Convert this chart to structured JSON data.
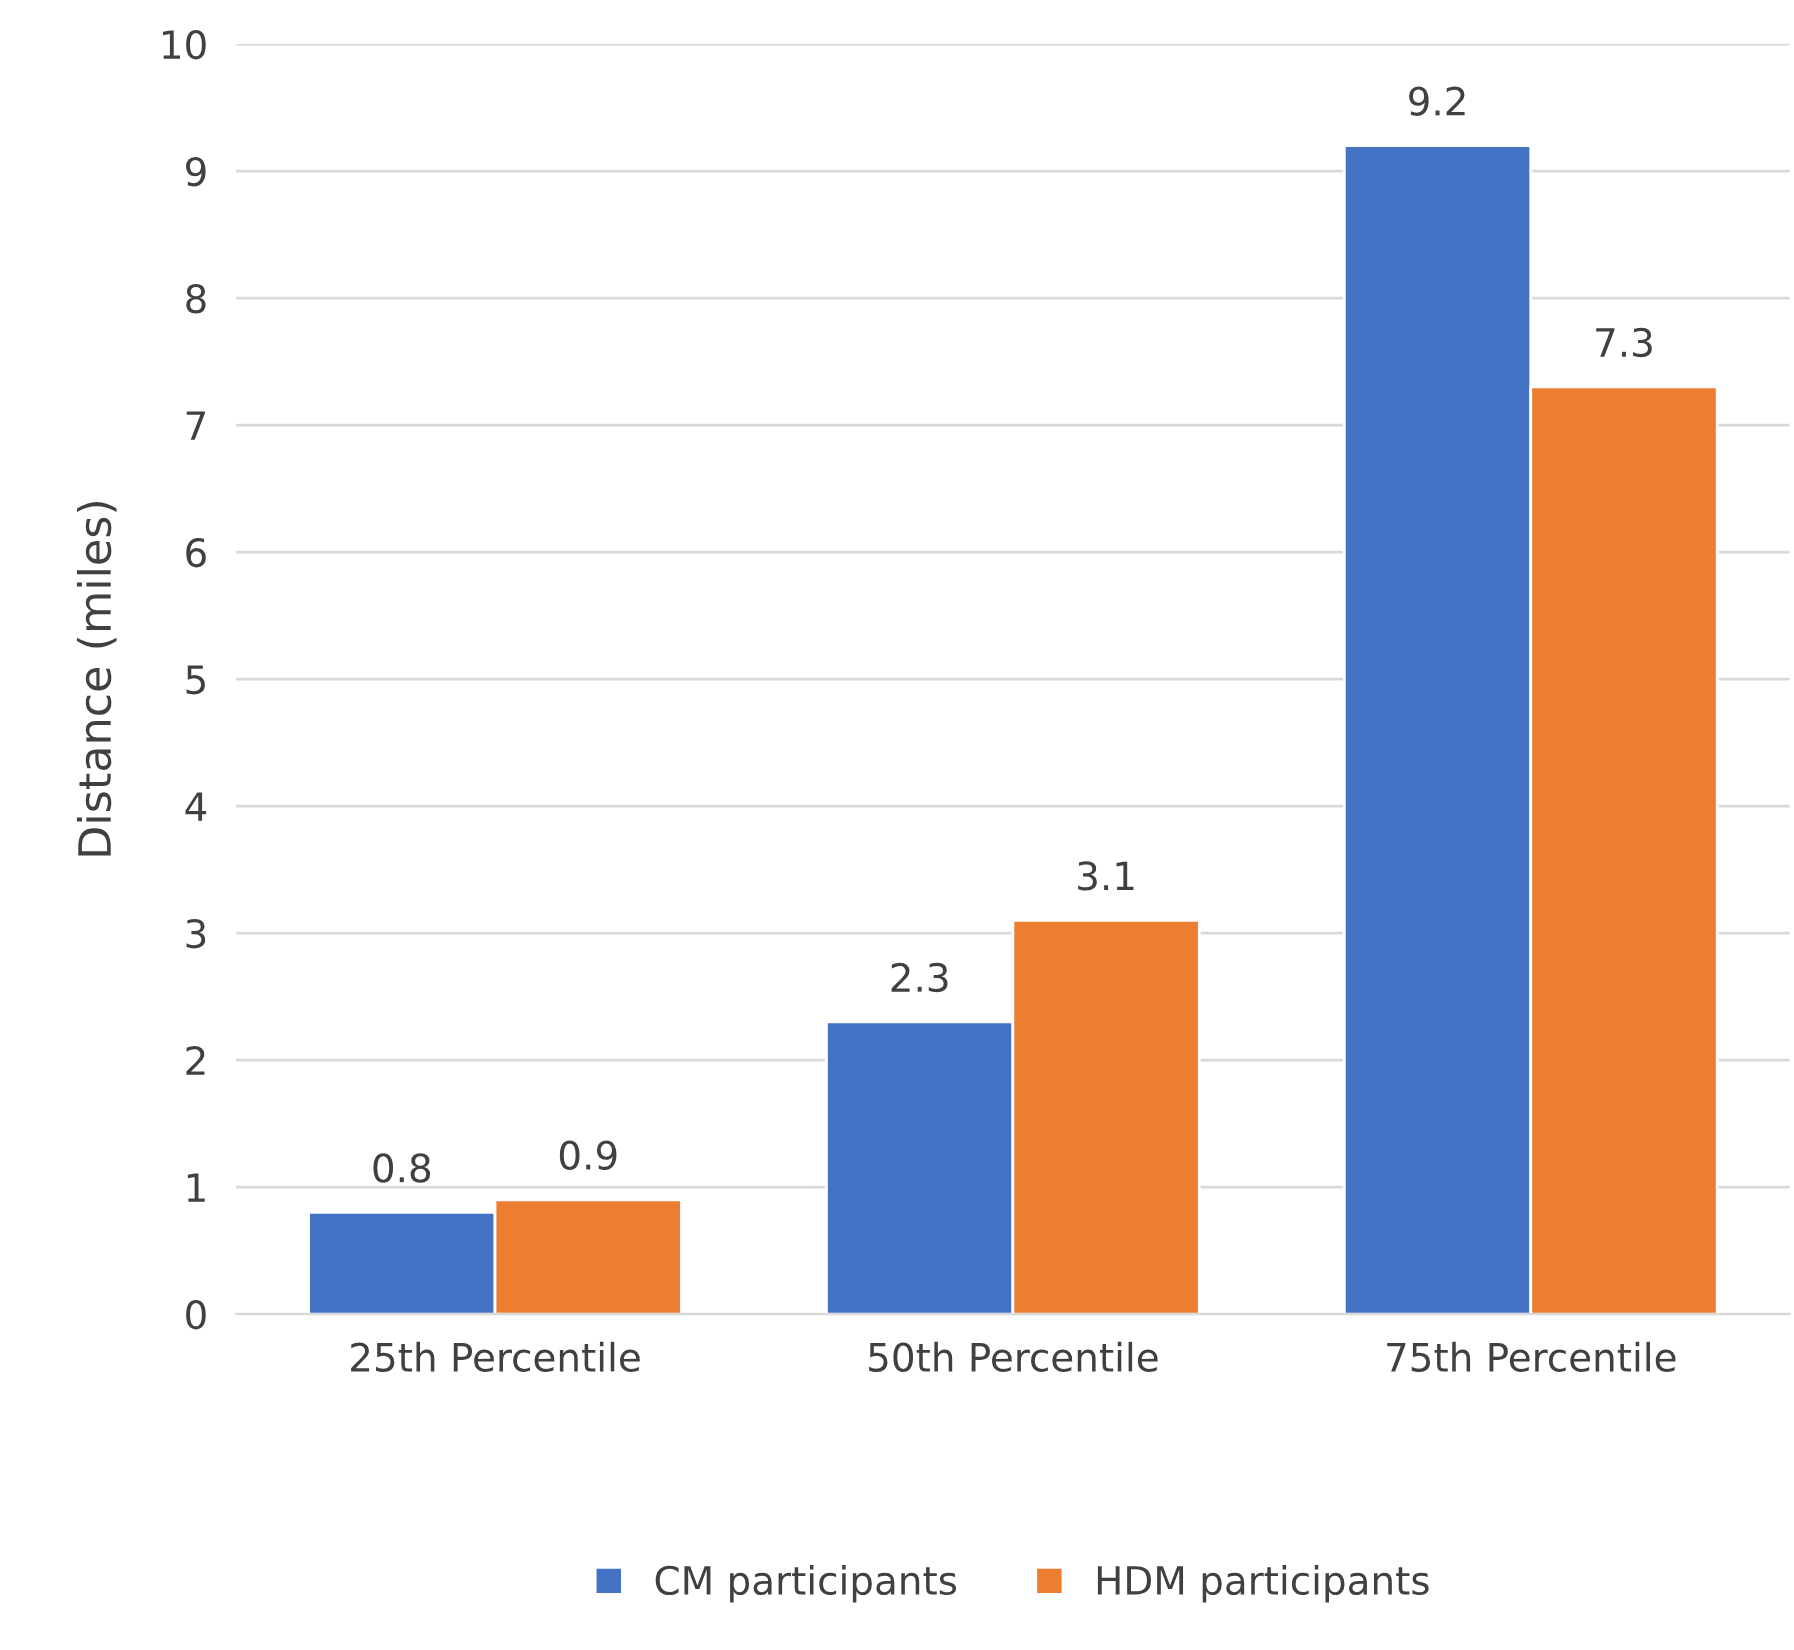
{
  "chart_data": {
    "type": "bar",
    "ylabel": "Distance (miles)",
    "categories": [
      "25th Percentile",
      "50th Percentile",
      "75th Percentile"
    ],
    "series": [
      {
        "name": "CM participants",
        "color": "#4472c4",
        "values": [
          0.8,
          2.3,
          9.2
        ]
      },
      {
        "name": "HDM participants",
        "color": "#ed7d31",
        "values": [
          0.9,
          3.1,
          7.3
        ]
      }
    ],
    "ylim": [
      0,
      10
    ],
    "yticks": [
      0,
      1,
      2,
      3,
      4,
      5,
      6,
      7,
      8,
      9,
      10
    ],
    "grid": "y",
    "legend": "bottom",
    "data_labels": true
  }
}
